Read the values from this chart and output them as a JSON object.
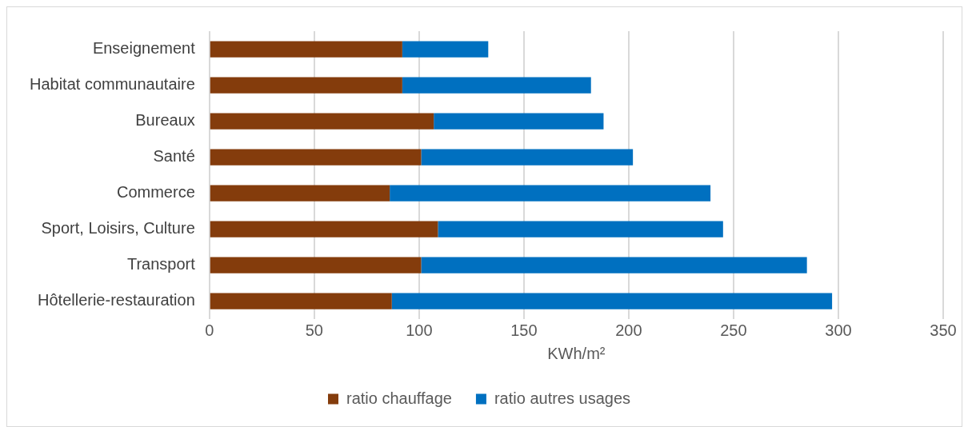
{
  "chart_data": {
    "type": "bar",
    "orientation": "horizontal",
    "stacked": true,
    "xlabel": "KWh/m²",
    "categories": [
      "Enseignement",
      "Habitat communautaire",
      "Bureaux",
      "Santé",
      "Commerce",
      "Sport, Loisirs, Culture",
      "Transport",
      "Hôtellerie-restauration"
    ],
    "series": [
      {
        "name": "ratio chauffage",
        "color": "#843c0c",
        "values": [
          92,
          92,
          107,
          101,
          86,
          109,
          101,
          87
        ]
      },
      {
        "name": "ratio autres usages",
        "color": "#0070c0",
        "values": [
          41,
          90,
          81,
          101,
          153,
          136,
          184,
          210
        ]
      }
    ],
    "xlim": [
      0,
      350
    ],
    "xticks": [
      0,
      50,
      100,
      150,
      200,
      250,
      300,
      350
    ],
    "grid": "x",
    "legend": "bottom"
  }
}
